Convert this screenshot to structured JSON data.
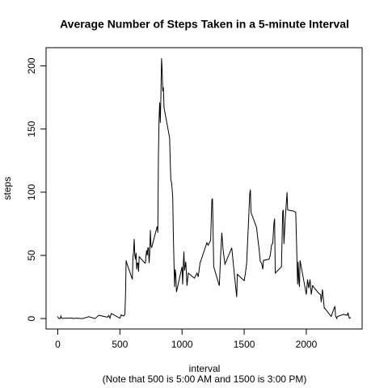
{
  "chart_data": {
    "type": "line",
    "title": "Average Number of Steps Taken in a 5-minute Interval",
    "x_label": "interval",
    "x_note": "(Note that 500 is 5:00 AM and 1500 is 3:00 PM)",
    "y_label": "steps",
    "color": "#000000",
    "xlim": [
      -94.2,
      2449.2
    ],
    "ylim": [
      -8.25,
      214.4
    ],
    "xticks": [
      0,
      500,
      1000,
      1500,
      2000
    ],
    "yticks": [
      0,
      50,
      100,
      150,
      200
    ],
    "x": [
      0,
      5,
      10,
      20,
      25,
      30,
      40,
      50,
      100,
      115,
      120,
      150,
      200,
      250,
      300,
      330,
      400,
      410,
      420,
      430,
      440,
      450,
      500,
      510,
      520,
      530,
      540,
      545,
      550,
      555,
      600,
      605,
      610,
      615,
      620,
      625,
      630,
      635,
      640,
      645,
      650,
      655,
      700,
      705,
      710,
      715,
      720,
      725,
      730,
      735,
      740,
      745,
      750,
      755,
      800,
      805,
      810,
      815,
      820,
      825,
      830,
      835,
      840,
      845,
      850,
      855,
      900,
      905,
      910,
      915,
      920,
      925,
      930,
      935,
      940,
      945,
      950,
      955,
      1000,
      1005,
      1010,
      1015,
      1020,
      1030,
      1040,
      1050,
      1100,
      1120,
      1130,
      1145,
      1200,
      1210,
      1230,
      1240,
      1245,
      1255,
      1300,
      1310,
      1320,
      1330,
      1345,
      1400,
      1420,
      1440,
      1445,
      1500,
      1510,
      1520,
      1545,
      1550,
      1555,
      1600,
      1610,
      1620,
      1630,
      1640,
      1650,
      1655,
      1700,
      1710,
      1720,
      1730,
      1740,
      1745,
      1750,
      1800,
      1810,
      1815,
      1820,
      1830,
      1845,
      1850,
      1900,
      1915,
      1930,
      1935,
      1940,
      1945,
      1950,
      2000,
      2010,
      2020,
      2030,
      2040,
      2050,
      2100,
      2115,
      2120,
      2130,
      2145,
      2150,
      2200,
      2230,
      2235,
      2245,
      2250,
      2300,
      2330,
      2335,
      2345,
      2350,
      2355
    ],
    "values": [
      1.7,
      0.3,
      0.1,
      0.1,
      2,
      0.5,
      0,
      0.3,
      0.3,
      0.5,
      0,
      0.3,
      0,
      1.5,
      0,
      2.6,
      1.1,
      2.5,
      0.3,
      4,
      3.5,
      3,
      0.3,
      3,
      2.3,
      2,
      3.3,
      18,
      46,
      44,
      31,
      49,
      53,
      63,
      50,
      47,
      52,
      39,
      44,
      44,
      37,
      49,
      44,
      44,
      50,
      54,
      50,
      56,
      56,
      44,
      52,
      70,
      58,
      56,
      73,
      68,
      129,
      158,
      171,
      155,
      177,
      206,
      196,
      180,
      183,
      167,
      143,
      124,
      109,
      108,
      103,
      96,
      66,
      45,
      25,
      39,
      35,
      21,
      41,
      27,
      42,
      53,
      38,
      45,
      26,
      36,
      32,
      36,
      33,
      44,
      60,
      58,
      62,
      94,
      95,
      41,
      26,
      49,
      68,
      55,
      43,
      56,
      36,
      17,
      35,
      30,
      36,
      44,
      99,
      102,
      84,
      72,
      63,
      55,
      45,
      44,
      39,
      46,
      47,
      50,
      58,
      60,
      76,
      79,
      36,
      41,
      85,
      86,
      59,
      78,
      100,
      86,
      85,
      84,
      27,
      45,
      30,
      25,
      46,
      19,
      31,
      24,
      31,
      19,
      26,
      20,
      19,
      13,
      23,
      8,
      8,
      1.6,
      9.8,
      2.2,
      0.1,
      1.6,
      3.3,
      2.6,
      4.7,
      0.6,
      0.2,
      1.1
    ]
  }
}
